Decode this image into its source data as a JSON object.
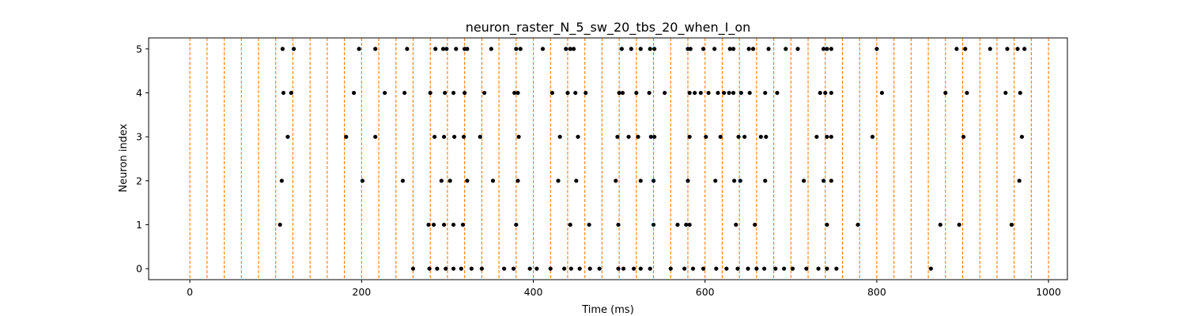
{
  "chart_data": {
    "type": "scatter",
    "title": "neuron_raster_N_5_sw_20_tbs_20_when_I_on",
    "xlabel": "Time (ms)",
    "ylabel": "Neuron index",
    "xlim": [
      -48,
      1022
    ],
    "ylim": [
      -0.25,
      5.25
    ],
    "xticks": [
      0,
      200,
      400,
      600,
      800,
      1000
    ],
    "yticks": [
      0,
      1,
      2,
      3,
      4,
      5
    ],
    "grid": false,
    "marker_color": "#000000",
    "vline_color": "#ff7f0e",
    "vline_style": "dashed",
    "vlines": [
      0,
      20,
      40,
      60,
      80,
      100,
      120,
      140,
      160,
      180,
      200,
      220,
      240,
      260,
      280,
      300,
      320,
      340,
      360,
      380,
      400,
      420,
      440,
      460,
      480,
      500,
      520,
      540,
      560,
      580,
      600,
      620,
      640,
      660,
      680,
      700,
      720,
      740,
      760,
      780,
      800,
      820,
      840,
      860,
      880,
      900,
      920,
      940,
      960,
      980,
      1000
    ],
    "series": [
      {
        "neuron": 0,
        "x": [
          260,
          279,
          288,
          298,
          307,
          316,
          328,
          340,
          366,
          377,
          396,
          404,
          420,
          436,
          444,
          454,
          466,
          477,
          499,
          505,
          517,
          525,
          536,
          560,
          576,
          586,
          598,
          613,
          625,
          638,
          650,
          660,
          669,
          682,
          692,
          702,
          718,
          732,
          742,
          753,
          863
        ]
      },
      {
        "neuron": 1,
        "x": [
          105,
          278,
          284,
          296,
          307,
          318,
          380,
          443,
          465,
          499,
          540,
          568,
          578,
          582,
          636,
          658,
          742,
          778,
          874,
          896,
          957
        ]
      },
      {
        "neuron": 2,
        "x": [
          107,
          201,
          248,
          293,
          303,
          323,
          353,
          382,
          429,
          450,
          496,
          525,
          540,
          580,
          612,
          634,
          641,
          670,
          715,
          738,
          747,
          966
        ]
      },
      {
        "neuron": 3,
        "x": [
          114,
          182,
          216,
          285,
          296,
          308,
          319,
          338,
          383,
          431,
          452,
          498,
          511,
          522,
          537,
          541,
          582,
          601,
          618,
          639,
          646,
          665,
          671,
          730,
          742,
          747,
          795,
          901,
          969
        ]
      },
      {
        "neuron": 4,
        "x": [
          109,
          118,
          191,
          227,
          250,
          280,
          297,
          307,
          320,
          343,
          378,
          382,
          422,
          440,
          449,
          461,
          500,
          504,
          520,
          535,
          553,
          582,
          588,
          595,
          604,
          615,
          622,
          628,
          633,
          642,
          652,
          670,
          684,
          734,
          740,
          747,
          806,
          880,
          905,
          950,
          967
        ]
      },
      {
        "neuron": 5,
        "x": [
          108,
          121,
          197,
          216,
          253,
          286,
          295,
          299,
          310,
          320,
          323,
          351,
          380,
          385,
          411,
          438,
          443,
          447,
          503,
          514,
          525,
          536,
          541,
          580,
          583,
          598,
          611,
          629,
          633,
          651,
          656,
          674,
          694,
          708,
          738,
          742,
          747,
          800,
          893,
          903,
          932,
          952,
          964,
          972
        ]
      }
    ]
  }
}
